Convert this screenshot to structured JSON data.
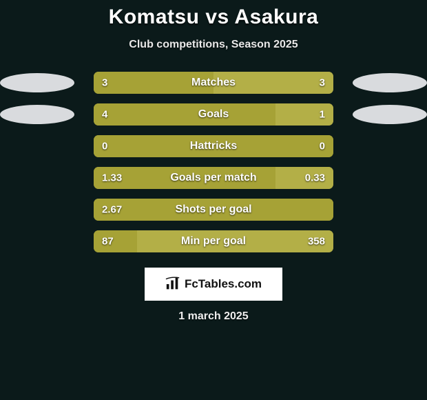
{
  "title": "Komatsu vs Asakura",
  "subtitle": "Club competitions, Season 2025",
  "date": "1 march 2025",
  "logo": {
    "text": "FcTables.com"
  },
  "colors": {
    "background": "#0b1a1a",
    "olive": "#a6a236",
    "olive_light": "#b3af47",
    "track": "#96903a",
    "oval": "#d9dbde",
    "text": "#ffffff"
  },
  "bar": {
    "track_width": 348,
    "height": 32,
    "radius": 7
  },
  "stats": [
    {
      "label": "Matches",
      "left_val": "3",
      "right_val": "3",
      "left_pct": 50,
      "right_pct": 50,
      "left_color": "#a6a236",
      "right_color": "#b3af47",
      "show_ovals": true
    },
    {
      "label": "Goals",
      "left_val": "4",
      "right_val": "1",
      "left_pct": 76,
      "right_pct": 24,
      "left_color": "#a6a236",
      "right_color": "#b3af47",
      "show_ovals": true
    },
    {
      "label": "Hattricks",
      "left_val": "0",
      "right_val": "0",
      "left_pct": 100,
      "right_pct": 0,
      "left_color": "#a6a236",
      "right_color": "#b3af47",
      "show_ovals": false
    },
    {
      "label": "Goals per match",
      "left_val": "1.33",
      "right_val": "0.33",
      "left_pct": 76,
      "right_pct": 24,
      "left_color": "#a6a236",
      "right_color": "#b3af47",
      "show_ovals": false
    },
    {
      "label": "Shots per goal",
      "left_val": "2.67",
      "right_val": "",
      "left_pct": 100,
      "right_pct": 0,
      "left_color": "#a6a236",
      "right_color": "#b3af47",
      "show_ovals": false
    },
    {
      "label": "Min per goal",
      "left_val": "87",
      "right_val": "358",
      "left_pct": 18,
      "right_pct": 82,
      "left_color": "#a6a236",
      "right_color": "#b3af47",
      "show_ovals": false
    }
  ]
}
